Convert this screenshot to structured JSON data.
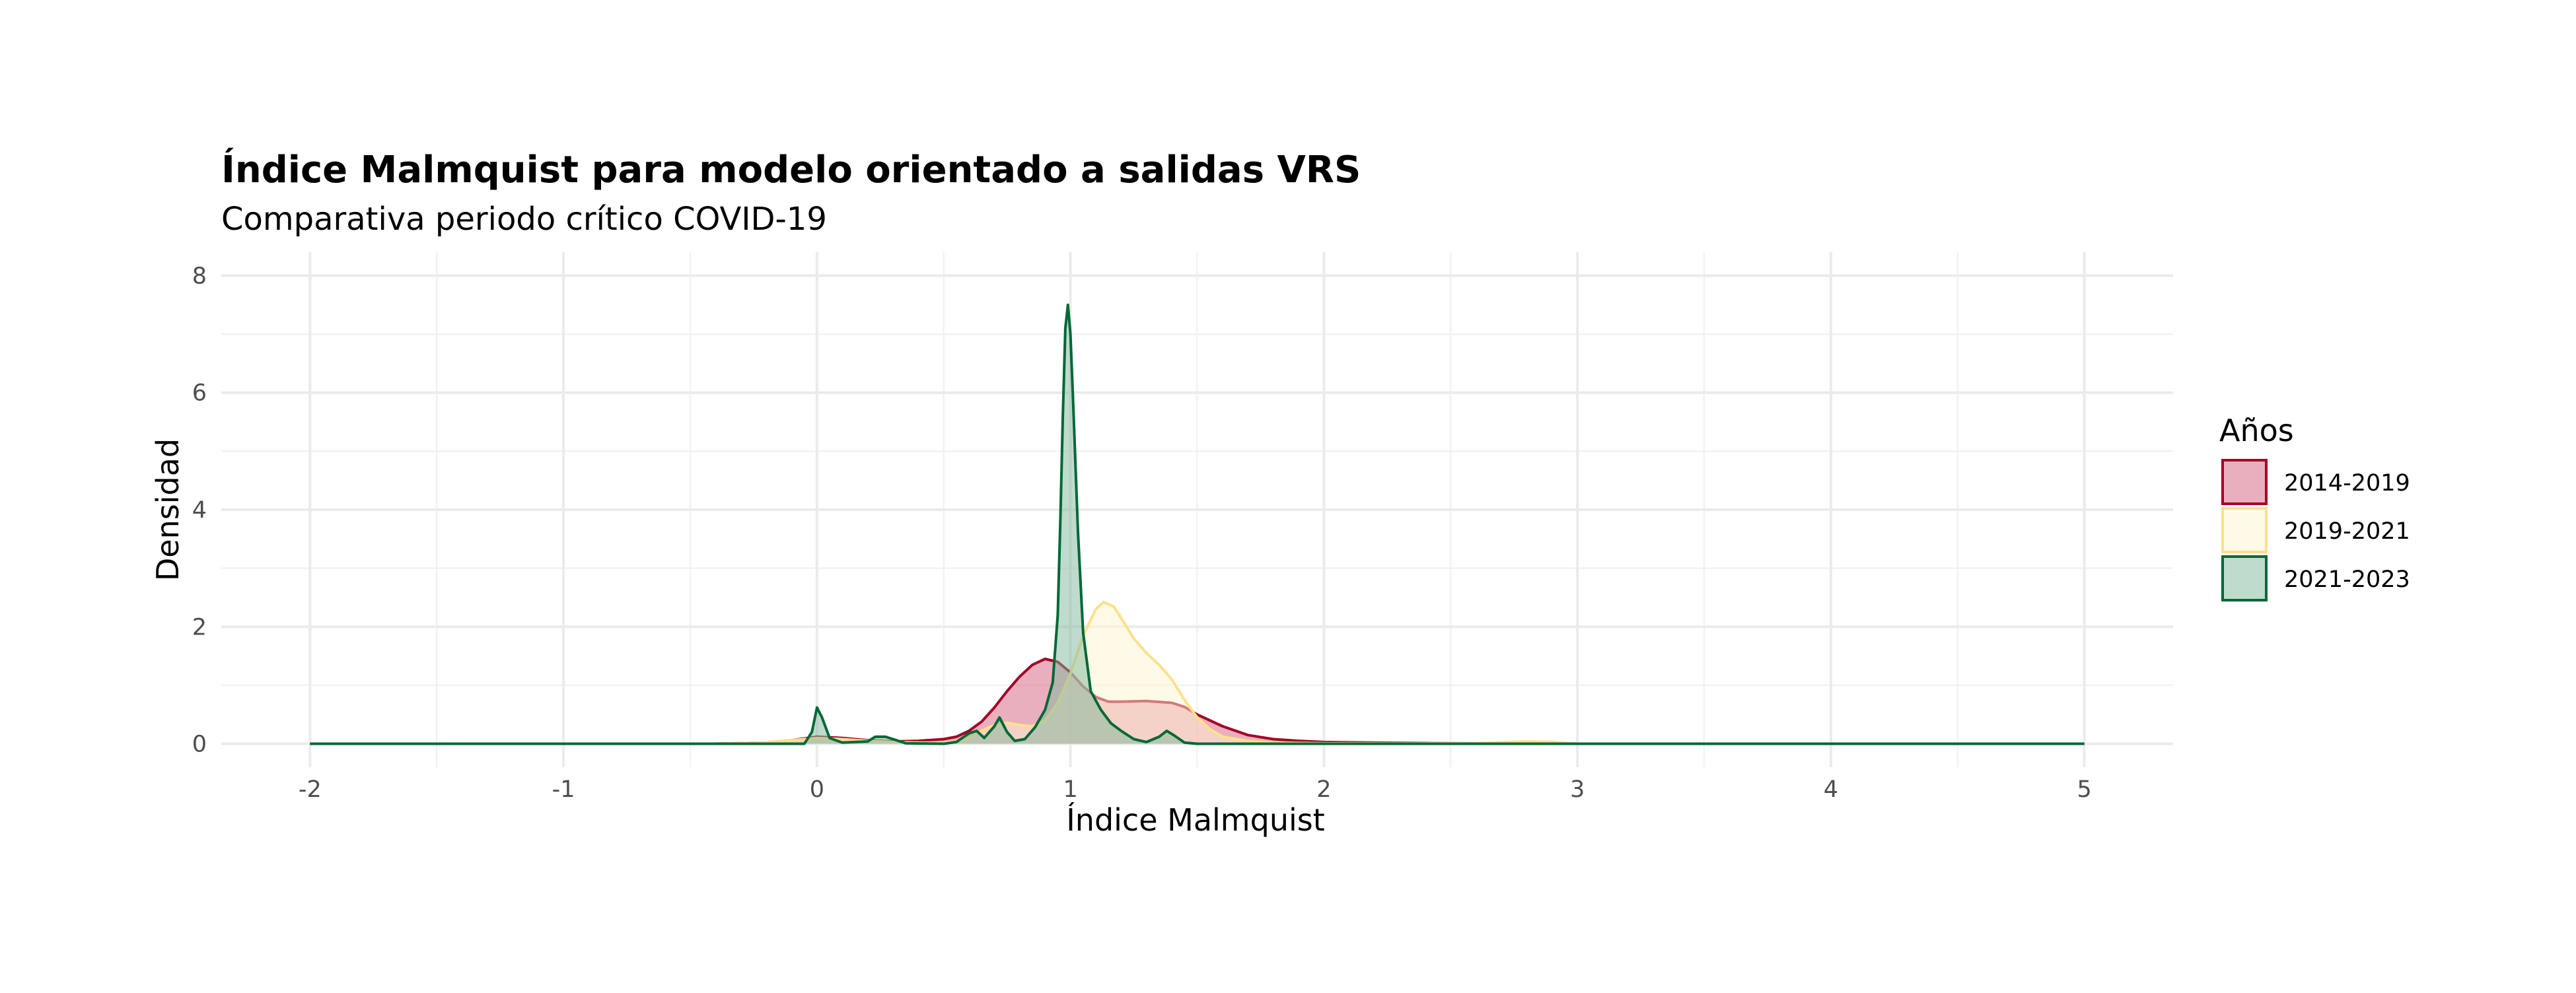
{
  "chart_data": {
    "type": "area",
    "title": "Índice Malmquist para modelo orientado a salidas VRS",
    "subtitle": "Comparativa periodo crítico COVID-19",
    "xlabel": "Índice Malmquist",
    "ylabel": "Densidad",
    "xlim": [
      -2.35,
      5.35
    ],
    "ylim": [
      -0.4,
      8.4
    ],
    "x_ticks": [
      -2,
      -1,
      0,
      1,
      2,
      3,
      4,
      5
    ],
    "y_ticks": [
      0,
      2,
      4,
      6,
      8
    ],
    "grid": true,
    "legend": {
      "title": "Años",
      "position": "right"
    },
    "series": [
      {
        "name": "2014-2019",
        "line_color": "#A50026",
        "fill_color": "#D6607D",
        "points": [
          [
            -2,
            0
          ],
          [
            -0.4,
            0
          ],
          [
            -0.2,
            0.02
          ],
          [
            -0.1,
            0.06
          ],
          [
            0,
            0.12
          ],
          [
            0.1,
            0.1
          ],
          [
            0.2,
            0.06
          ],
          [
            0.3,
            0.04
          ],
          [
            0.4,
            0.05
          ],
          [
            0.5,
            0.08
          ],
          [
            0.55,
            0.12
          ],
          [
            0.6,
            0.22
          ],
          [
            0.65,
            0.38
          ],
          [
            0.7,
            0.62
          ],
          [
            0.75,
            0.9
          ],
          [
            0.8,
            1.15
          ],
          [
            0.85,
            1.35
          ],
          [
            0.9,
            1.45
          ],
          [
            0.95,
            1.4
          ],
          [
            1.0,
            1.22
          ],
          [
            1.05,
            0.98
          ],
          [
            1.1,
            0.8
          ],
          [
            1.15,
            0.72
          ],
          [
            1.2,
            0.72
          ],
          [
            1.3,
            0.73
          ],
          [
            1.4,
            0.7
          ],
          [
            1.45,
            0.63
          ],
          [
            1.5,
            0.5
          ],
          [
            1.6,
            0.3
          ],
          [
            1.7,
            0.15
          ],
          [
            1.8,
            0.08
          ],
          [
            1.9,
            0.05
          ],
          [
            2.0,
            0.03
          ],
          [
            2.2,
            0.02
          ],
          [
            2.5,
            0.01
          ],
          [
            3.0,
            0
          ],
          [
            5,
            0
          ]
        ]
      },
      {
        "name": "2019-2021",
        "line_color": "#FEE08B",
        "fill_color": "#FFF6CF",
        "points": [
          [
            -2,
            0
          ],
          [
            -0.4,
            0
          ],
          [
            -0.2,
            0.02
          ],
          [
            -0.1,
            0.06
          ],
          [
            0,
            0.1
          ],
          [
            0.1,
            0.08
          ],
          [
            0.2,
            0.05
          ],
          [
            0.3,
            0.03
          ],
          [
            0.4,
            0.02
          ],
          [
            0.5,
            0.02
          ],
          [
            0.55,
            0.04
          ],
          [
            0.6,
            0.1
          ],
          [
            0.65,
            0.22
          ],
          [
            0.7,
            0.32
          ],
          [
            0.75,
            0.36
          ],
          [
            0.8,
            0.32
          ],
          [
            0.85,
            0.3
          ],
          [
            0.9,
            0.4
          ],
          [
            0.95,
            0.7
          ],
          [
            1.0,
            1.2
          ],
          [
            1.05,
            1.85
          ],
          [
            1.1,
            2.3
          ],
          [
            1.13,
            2.42
          ],
          [
            1.17,
            2.35
          ],
          [
            1.2,
            2.15
          ],
          [
            1.25,
            1.8
          ],
          [
            1.3,
            1.55
          ],
          [
            1.35,
            1.35
          ],
          [
            1.4,
            1.1
          ],
          [
            1.45,
            0.75
          ],
          [
            1.5,
            0.45
          ],
          [
            1.55,
            0.25
          ],
          [
            1.6,
            0.12
          ],
          [
            1.7,
            0.05
          ],
          [
            1.8,
            0.02
          ],
          [
            2.0,
            0.01
          ],
          [
            2.6,
            0.01
          ],
          [
            2.8,
            0.04
          ],
          [
            2.9,
            0.03
          ],
          [
            3.0,
            0
          ],
          [
            5,
            0
          ]
        ]
      },
      {
        "name": "2021-2023",
        "line_color": "#006837",
        "fill_color": "#7FB89B",
        "points": [
          [
            -2,
            0
          ],
          [
            -0.05,
            0
          ],
          [
            -0.02,
            0.2
          ],
          [
            0,
            0.62
          ],
          [
            0.02,
            0.45
          ],
          [
            0.05,
            0.1
          ],
          [
            0.1,
            0.02
          ],
          [
            0.2,
            0.04
          ],
          [
            0.23,
            0.12
          ],
          [
            0.27,
            0.12
          ],
          [
            0.3,
            0.08
          ],
          [
            0.35,
            0.01
          ],
          [
            0.5,
            0
          ],
          [
            0.55,
            0.03
          ],
          [
            0.6,
            0.18
          ],
          [
            0.63,
            0.22
          ],
          [
            0.66,
            0.1
          ],
          [
            0.7,
            0.3
          ],
          [
            0.72,
            0.45
          ],
          [
            0.75,
            0.2
          ],
          [
            0.78,
            0.05
          ],
          [
            0.82,
            0.08
          ],
          [
            0.86,
            0.28
          ],
          [
            0.9,
            0.58
          ],
          [
            0.93,
            1.05
          ],
          [
            0.95,
            2.2
          ],
          [
            0.96,
            3.8
          ],
          [
            0.97,
            5.6
          ],
          [
            0.98,
            7.1
          ],
          [
            0.99,
            7.5
          ],
          [
            1.0,
            7.0
          ],
          [
            1.01,
            5.9
          ],
          [
            1.03,
            3.6
          ],
          [
            1.05,
            1.9
          ],
          [
            1.08,
            0.9
          ],
          [
            1.12,
            0.58
          ],
          [
            1.16,
            0.35
          ],
          [
            1.2,
            0.22
          ],
          [
            1.25,
            0.08
          ],
          [
            1.3,
            0.03
          ],
          [
            1.35,
            0.12
          ],
          [
            1.38,
            0.22
          ],
          [
            1.41,
            0.14
          ],
          [
            1.45,
            0.02
          ],
          [
            1.5,
            0
          ],
          [
            5,
            0
          ]
        ]
      }
    ]
  }
}
